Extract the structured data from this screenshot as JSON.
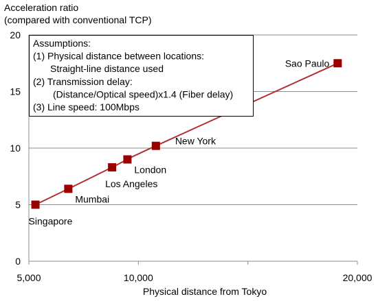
{
  "chart_data": {
    "type": "line",
    "ylabel": [
      "Acceleration ratio",
      "(compared with conventional TCP)"
    ],
    "xlabel": "Physical distance from Tokyo",
    "xlim": [
      5000,
      20000
    ],
    "ylim": [
      0,
      20
    ],
    "x_ticks": [
      {
        "value": 5000,
        "label": "5,000"
      },
      {
        "value": 10000,
        "label": "10,000"
      },
      {
        "value": 15000,
        "label": ""
      },
      {
        "value": 20000,
        "label": "20,000"
      }
    ],
    "y_ticks": [
      {
        "value": 0,
        "label": "0"
      },
      {
        "value": 5,
        "label": "5"
      },
      {
        "value": 10,
        "label": "10"
      },
      {
        "value": 15,
        "label": "15"
      },
      {
        "value": 20,
        "label": "20"
      }
    ],
    "grid": {
      "horizontal": true,
      "vertical": false
    },
    "line_color": "#b03030",
    "marker_color": "#9b0000",
    "points": [
      {
        "x": 5300,
        "y": 5.0,
        "label": "Singapore",
        "anchor": "below"
      },
      {
        "x": 6800,
        "y": 6.4,
        "label": "Mumbai",
        "anchor": "below-right"
      },
      {
        "x": 8800,
        "y": 8.3,
        "label": "Los Angeles",
        "anchor": "below"
      },
      {
        "x": 9500,
        "y": 9.0,
        "label": "London",
        "anchor": "below-right"
      },
      {
        "x": 10800,
        "y": 10.2,
        "label": "New York",
        "anchor": "above-right"
      },
      {
        "x": 19100,
        "y": 17.5,
        "label": "Sao Paulo",
        "anchor": "left"
      }
    ],
    "annotation": {
      "lines": [
        "Assumptions:",
        "(1)  Physical distance between locations:",
        "Straight-line distance used",
        "(2)  Transmission delay:",
        "(Distance/Optical speed)x1.4  (Fiber delay)",
        "(3)  Line speed: 100Mbps"
      ],
      "indent": [
        0,
        1,
        2,
        1,
        2,
        1
      ]
    }
  }
}
